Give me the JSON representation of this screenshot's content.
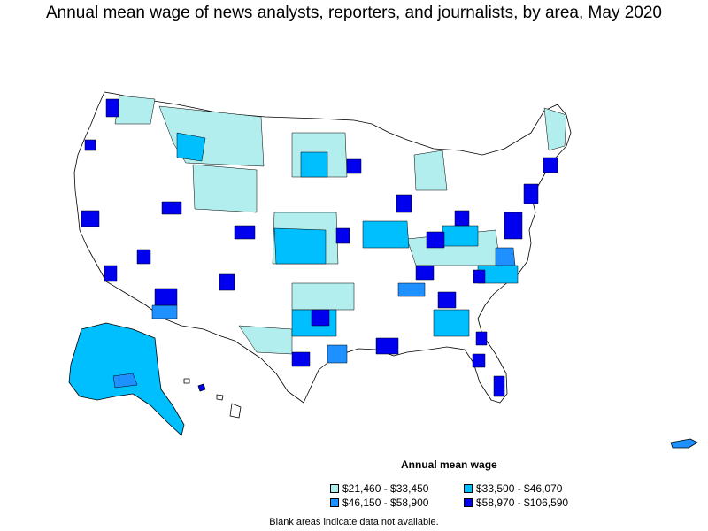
{
  "title": "Annual mean wage of news analysts, reporters, and journalists, by area, May 2020",
  "legend": {
    "title": "Annual mean wage",
    "items": [
      {
        "label": "$21,460 - $33,450",
        "color": "#b2eeee"
      },
      {
        "label": "$33,500 - $46,070",
        "color": "#00bfff"
      },
      {
        "label": "$46,150 - $58,900",
        "color": "#1e90ff"
      },
      {
        "label": "$58,970 - $106,590",
        "color": "#0000ee"
      }
    ]
  },
  "note": "Blank areas indicate data not available."
}
